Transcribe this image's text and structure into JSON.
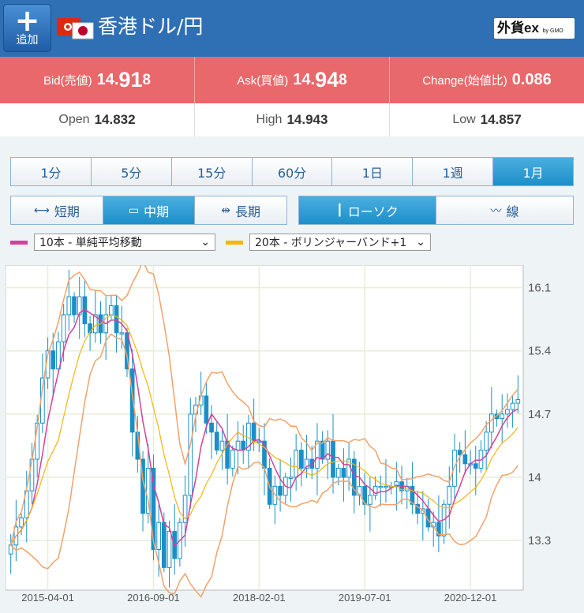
{
  "header": {
    "add_label": "追加",
    "title": "香港ドル/円",
    "logo": "外貨ex",
    "logo_sub": "by GMO"
  },
  "quote": {
    "bid_label": "Bid(売値)",
    "bid_a": "14.",
    "bid_b": "91",
    "bid_c": "8",
    "ask_label": "Ask(買値)",
    "ask_a": "14.",
    "ask_b": "94",
    "ask_c": "8",
    "change_label": "Change(始値比)",
    "change": "0.086"
  },
  "ohl": {
    "open_label": "Open",
    "open": "14.832",
    "high_label": "High",
    "high": "14.943",
    "low_label": "Low",
    "low": "14.857"
  },
  "timeframes": [
    "1分",
    "5分",
    "15分",
    "60分",
    "1日",
    "1週",
    "1月"
  ],
  "active_timeframe": 6,
  "range": {
    "short": "短期",
    "mid": "中期",
    "long": "長期",
    "active": "mid"
  },
  "chart_type": {
    "candle": "ローソク",
    "line": "線",
    "active": "candle"
  },
  "indicators": {
    "sma": {
      "label": "10本 - 単純平均移動",
      "color": "#d63f9b"
    },
    "bb": {
      "label": "20本 - ボリンジャーバンド+1",
      "color": "#f5b50a"
    }
  },
  "chart_data": {
    "type": "candlestick",
    "xlabel_ticks": [
      "2015-04-01",
      "2016-09-01",
      "2018-02-01",
      "2019-07-01",
      "2020-12-01"
    ],
    "y_ticks": [
      16.1,
      15.4,
      14.7,
      14,
      13.3
    ],
    "ylim": [
      12.75,
      16.35
    ],
    "candles": [
      13.25,
      13.45,
      13.55,
      13.85,
      14.2,
      14.6,
      15.1,
      15.4,
      15.2,
      15.5,
      15.8,
      16.0,
      15.8,
      16.0,
      15.7,
      15.6,
      15.8,
      15.6,
      15.8,
      15.9,
      15.6,
      15.6,
      15.2,
      14.5,
      14.2,
      13.6,
      14.1,
      13.2,
      13.5,
      13.0,
      13.4,
      13.1,
      13.5,
      13.8,
      14.7,
      14.8,
      14.9,
      14.6,
      14.5,
      14.3,
      14.4,
      14.1,
      14.3,
      14.4,
      14.3,
      14.6,
      14.4,
      14.4,
      14.1,
      13.7,
      13.9,
      13.8,
      14.0,
      14.0,
      14.3,
      14.1,
      14.2,
      14.1,
      14.4,
      14.2,
      14.4,
      14.0,
      14.1,
      14.0,
      14.2,
      13.8,
      13.9,
      13.7,
      13.8,
      13.9,
      13.9,
      13.9,
      13.9,
      13.95,
      13.85,
      13.9,
      13.7,
      13.6,
      13.65,
      13.45,
      13.5,
      13.35,
      13.7,
      13.9,
      14.3,
      14.25,
      14.15,
      14.15,
      14.1,
      14.3,
      14.5,
      14.7,
      14.65,
      14.7,
      14.75,
      14.82,
      14.86
    ],
    "sma10_color": "#d63f9b",
    "bb_color": "#f5b50a",
    "band_line_color": "#f2a26a"
  }
}
